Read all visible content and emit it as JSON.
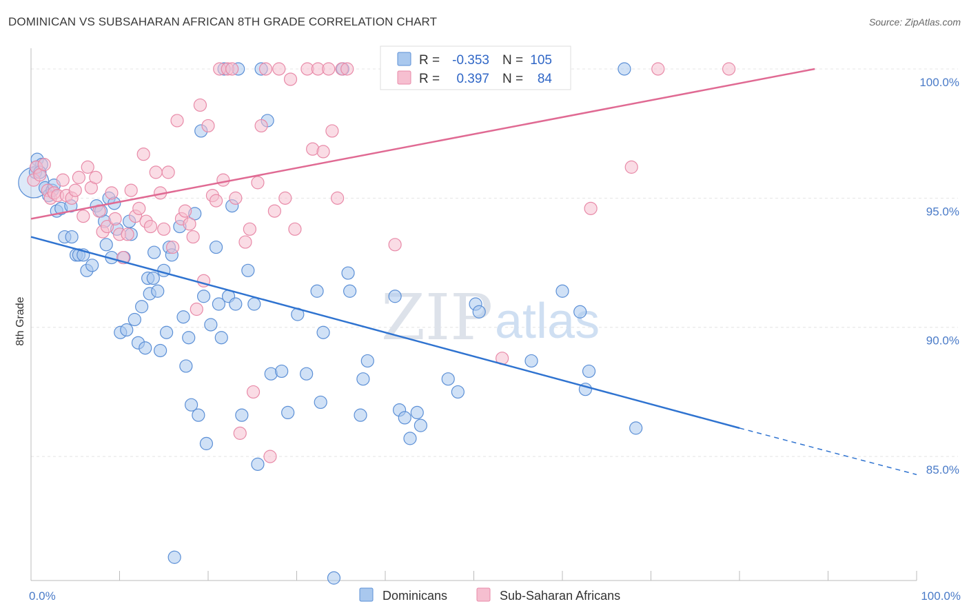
{
  "header": {
    "title": "DOMINICAN VS SUBSAHARAN AFRICAN 8TH GRADE CORRELATION CHART",
    "source": "Source: ZipAtlas.com"
  },
  "legend": {
    "r_label": "R =",
    "n_label": "N =",
    "rows": [
      {
        "r": "-0.353",
        "n": "105"
      },
      {
        "r": "0.397",
        "n": "84"
      }
    ]
  },
  "bottom_legend": [
    "Dominicans",
    "Sub-Saharan Africans"
  ],
  "watermark": {
    "zip": "ZIP",
    "atlas": "atlas"
  },
  "colors": {
    "blue_fill": "#a9c8ee",
    "blue_stroke": "#5b8fd6",
    "blue_line": "#2f73d0",
    "pink_fill": "#f6bfd0",
    "pink_stroke": "#e88aa8",
    "pink_line": "#e06a93",
    "grid": "#e4e4e4",
    "tick_label": "#4a7bc8"
  },
  "chart_data": {
    "type": "scatter",
    "title": "DOMINICAN VS SUBSAHARAN AFRICAN 8TH GRADE CORRELATION CHART",
    "xlabel": "",
    "ylabel": "8th Grade",
    "xlim": [
      0,
      100
    ],
    "ylim": [
      80.2,
      100.8
    ],
    "x_tick_labels": [
      "0.0%",
      "100.0%"
    ],
    "y_ticks": [
      100,
      95,
      90,
      85
    ],
    "y_tick_labels": [
      "100.0%",
      "95.0%",
      "90.0%",
      "85.0%"
    ],
    "grid": true,
    "legend_position": "top-center",
    "series": [
      {
        "name": "Dominicans",
        "r": -0.353,
        "n": 105,
        "trend": {
          "x0": 0,
          "y0": 93.5,
          "x1": 80,
          "y1": 86.1,
          "dashed_to_x": 100,
          "dashed_y": 84.3
        },
        "points": [
          [
            0.3,
            95.6
          ],
          [
            0.5,
            96.0
          ],
          [
            0.7,
            96.5
          ],
          [
            1.2,
            96.3
          ],
          [
            1.6,
            95.4
          ],
          [
            2.0,
            95.1
          ],
          [
            2.4,
            95.3
          ],
          [
            2.9,
            94.5
          ],
          [
            3.4,
            94.6
          ],
          [
            3.8,
            93.5
          ],
          [
            4.5,
            94.7
          ],
          [
            4.6,
            93.5
          ],
          [
            5.1,
            92.8
          ],
          [
            5.4,
            92.8
          ],
          [
            5.9,
            92.8
          ],
          [
            6.3,
            92.2
          ],
          [
            6.9,
            92.4
          ],
          [
            7.4,
            94.7
          ],
          [
            7.9,
            94.5
          ],
          [
            8.3,
            94.1
          ],
          [
            8.5,
            93.2
          ],
          [
            8.8,
            95.0
          ],
          [
            9.1,
            92.7
          ],
          [
            9.4,
            94.8
          ],
          [
            9.7,
            93.8
          ],
          [
            10.1,
            89.8
          ],
          [
            10.5,
            92.7
          ],
          [
            10.8,
            89.9
          ],
          [
            11.1,
            94.1
          ],
          [
            11.3,
            93.6
          ],
          [
            11.7,
            90.3
          ],
          [
            12.1,
            89.4
          ],
          [
            12.5,
            90.8
          ],
          [
            12.9,
            89.2
          ],
          [
            13.2,
            91.9
          ],
          [
            13.4,
            91.3
          ],
          [
            13.8,
            91.9
          ],
          [
            13.9,
            92.9
          ],
          [
            14.3,
            91.4
          ],
          [
            14.6,
            89.1
          ],
          [
            15.0,
            92.2
          ],
          [
            15.3,
            89.8
          ],
          [
            15.6,
            93.1
          ],
          [
            15.9,
            92.8
          ],
          [
            16.2,
            81.1
          ],
          [
            16.8,
            93.9
          ],
          [
            17.2,
            90.4
          ],
          [
            17.5,
            88.5
          ],
          [
            17.8,
            89.6
          ],
          [
            18.1,
            87.0
          ],
          [
            18.5,
            94.4
          ],
          [
            18.9,
            86.6
          ],
          [
            19.2,
            97.6
          ],
          [
            19.5,
            91.2
          ],
          [
            19.8,
            85.5
          ],
          [
            20.3,
            90.1
          ],
          [
            20.9,
            93.1
          ],
          [
            21.2,
            90.9
          ],
          [
            21.5,
            89.6
          ],
          [
            21.8,
            100.0
          ],
          [
            22.3,
            91.2
          ],
          [
            22.7,
            94.7
          ],
          [
            23.1,
            90.9
          ],
          [
            23.4,
            100.0
          ],
          [
            23.8,
            86.6
          ],
          [
            24.5,
            92.2
          ],
          [
            25.2,
            90.9
          ],
          [
            25.6,
            84.7
          ],
          [
            26.0,
            100.0
          ],
          [
            26.7,
            98.0
          ],
          [
            27.1,
            88.2
          ],
          [
            28.3,
            88.3
          ],
          [
            29.0,
            86.7
          ],
          [
            30.1,
            90.5
          ],
          [
            31.1,
            88.2
          ],
          [
            32.3,
            91.4
          ],
          [
            32.7,
            87.1
          ],
          [
            33.0,
            89.8
          ],
          [
            34.2,
            80.3
          ],
          [
            35.2,
            100.0
          ],
          [
            35.8,
            92.1
          ],
          [
            36.0,
            91.4
          ],
          [
            37.2,
            86.6
          ],
          [
            37.5,
            88.0
          ],
          [
            38.0,
            88.7
          ],
          [
            41.1,
            91.2
          ],
          [
            41.6,
            86.8
          ],
          [
            42.2,
            86.5
          ],
          [
            42.8,
            85.7
          ],
          [
            43.6,
            86.7
          ],
          [
            44.0,
            86.2
          ],
          [
            47.1,
            88.0
          ],
          [
            48.2,
            87.5
          ],
          [
            50.2,
            90.9
          ],
          [
            50.6,
            90.6
          ],
          [
            56.5,
            88.7
          ],
          [
            60.0,
            91.4
          ],
          [
            62.0,
            90.6
          ],
          [
            62.6,
            87.6
          ],
          [
            63.0,
            88.3
          ],
          [
            68.3,
            86.1
          ],
          [
            67.0,
            100.0
          ],
          [
            0.6,
            96.2
          ],
          [
            1.0,
            96.0
          ],
          [
            2.6,
            95.5
          ]
        ]
      },
      {
        "name": "Sub-Saharan Africans",
        "r": 0.397,
        "n": 84,
        "trend": {
          "x0": 0,
          "y0": 94.2,
          "x1": 88.5,
          "y1": 100.0
        },
        "points": [
          [
            0.3,
            95.7
          ],
          [
            0.6,
            96.2
          ],
          [
            1.0,
            95.9
          ],
          [
            1.5,
            96.3
          ],
          [
            1.9,
            95.3
          ],
          [
            2.2,
            95.0
          ],
          [
            2.6,
            95.2
          ],
          [
            3.0,
            95.1
          ],
          [
            3.6,
            95.7
          ],
          [
            4.0,
            95.1
          ],
          [
            4.6,
            95.0
          ],
          [
            5.0,
            95.3
          ],
          [
            5.4,
            95.8
          ],
          [
            5.9,
            94.3
          ],
          [
            6.4,
            96.2
          ],
          [
            6.8,
            95.4
          ],
          [
            7.3,
            95.8
          ],
          [
            7.7,
            94.5
          ],
          [
            8.1,
            93.7
          ],
          [
            8.6,
            93.9
          ],
          [
            9.1,
            95.2
          ],
          [
            9.5,
            94.2
          ],
          [
            10.0,
            93.6
          ],
          [
            10.4,
            92.7
          ],
          [
            10.9,
            93.6
          ],
          [
            11.3,
            95.3
          ],
          [
            11.8,
            94.3
          ],
          [
            12.2,
            94.6
          ],
          [
            12.7,
            96.7
          ],
          [
            13.0,
            94.1
          ],
          [
            13.5,
            93.9
          ],
          [
            14.1,
            96.0
          ],
          [
            14.6,
            95.2
          ],
          [
            15.0,
            93.8
          ],
          [
            15.5,
            96.0
          ],
          [
            16.0,
            93.1
          ],
          [
            16.5,
            98.0
          ],
          [
            17.0,
            94.2
          ],
          [
            17.4,
            94.5
          ],
          [
            17.9,
            94.0
          ],
          [
            18.3,
            93.5
          ],
          [
            18.7,
            90.7
          ],
          [
            19.1,
            98.6
          ],
          [
            19.5,
            91.8
          ],
          [
            20.0,
            97.8
          ],
          [
            20.5,
            95.1
          ],
          [
            20.9,
            94.9
          ],
          [
            21.3,
            100.0
          ],
          [
            21.7,
            95.7
          ],
          [
            22.2,
            100.0
          ],
          [
            22.7,
            100.0
          ],
          [
            23.1,
            95.0
          ],
          [
            23.6,
            85.9
          ],
          [
            24.2,
            93.3
          ],
          [
            24.7,
            93.8
          ],
          [
            25.1,
            87.5
          ],
          [
            25.6,
            95.6
          ],
          [
            26.0,
            97.8
          ],
          [
            26.5,
            100.0
          ],
          [
            27.0,
            85.0
          ],
          [
            27.5,
            94.5
          ],
          [
            28.0,
            100.0
          ],
          [
            28.7,
            95.0
          ],
          [
            29.3,
            99.6
          ],
          [
            29.8,
            93.8
          ],
          [
            31.2,
            100.0
          ],
          [
            31.8,
            96.9
          ],
          [
            32.4,
            100.0
          ],
          [
            33.0,
            96.8
          ],
          [
            33.6,
            100.0
          ],
          [
            34.0,
            97.6
          ],
          [
            34.6,
            95.0
          ],
          [
            35.1,
            100.0
          ],
          [
            35.7,
            100.0
          ],
          [
            40.5,
            100.0
          ],
          [
            41.1,
            93.2
          ],
          [
            47.0,
            100.0
          ],
          [
            48.5,
            100.0
          ],
          [
            53.2,
            88.8
          ],
          [
            59.3,
            100.0
          ],
          [
            63.2,
            94.6
          ],
          [
            67.8,
            96.2
          ],
          [
            70.8,
            100.0
          ],
          [
            78.8,
            100.0
          ]
        ]
      }
    ]
  }
}
